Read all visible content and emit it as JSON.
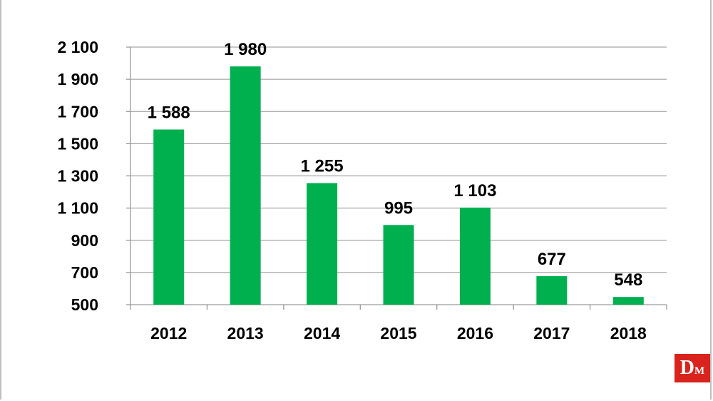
{
  "chart_data": {
    "type": "bar",
    "categories": [
      "2012",
      "2013",
      "2014",
      "2015",
      "2016",
      "2017",
      "2018"
    ],
    "values": [
      1588,
      1980,
      1255,
      995,
      1103,
      677,
      548
    ],
    "data_labels": [
      "1 588",
      "1 980",
      "1 255",
      "995",
      "1 103",
      "677",
      "548"
    ],
    "y_ticks": [
      500,
      700,
      900,
      1100,
      1300,
      1500,
      1700,
      1900,
      2100
    ],
    "y_tick_labels": [
      "500",
      "700",
      "900",
      "1 100",
      "1 300",
      "1 500",
      "1 700",
      "1 900",
      "2 100"
    ],
    "ylim": [
      500,
      2100
    ],
    "grid": true,
    "bar_color": "#00b04f",
    "title": "",
    "xlabel": "",
    "ylabel": ""
  },
  "logo": {
    "big": "D",
    "small": "M",
    "color": "#d9231d"
  }
}
